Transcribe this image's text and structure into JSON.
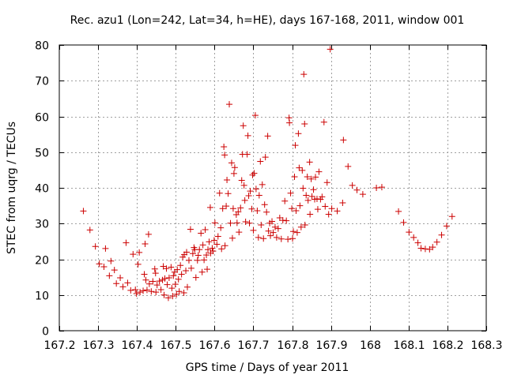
{
  "chart_data": {
    "type": "scatter",
    "title": "Rec. azu1 (Lon=242, Lat=34, h=HE), days 167-168, 2011, window 001",
    "xlabel": "GPS time / Days of year 2011",
    "ylabel": "STEC from uqrg / TECUs",
    "xlim": [
      167.2,
      168.3
    ],
    "ylim": [
      0,
      80
    ],
    "xticks": [
      167.2,
      167.3,
      167.4,
      167.5,
      167.6,
      167.7,
      167.8,
      167.9,
      168,
      168.1,
      168.2,
      168.3
    ],
    "xtick_labels": [
      "167.2",
      "167.3",
      "167.4",
      "167.5",
      "167.6",
      "167.7",
      "167.8",
      "167.9",
      "168",
      "168.1",
      "168.2",
      "168.3"
    ],
    "yticks": [
      0,
      10,
      20,
      30,
      40,
      50,
      60,
      70,
      80
    ],
    "ytick_labels": [
      "0",
      "10",
      "20",
      "30",
      "40",
      "50",
      "60",
      "70",
      "80"
    ],
    "grid": true,
    "marker": "+",
    "color": "#cc0000",
    "points": [
      [
        167.262,
        33.5
      ],
      [
        167.279,
        28.2
      ],
      [
        167.293,
        23.6
      ],
      [
        167.303,
        18.7
      ],
      [
        167.315,
        17.9
      ],
      [
        167.319,
        23.0
      ],
      [
        167.329,
        15.4
      ],
      [
        167.333,
        19.5
      ],
      [
        167.342,
        17.0
      ],
      [
        167.347,
        13.2
      ],
      [
        167.357,
        14.8
      ],
      [
        167.364,
        12.3
      ],
      [
        167.372,
        24.6
      ],
      [
        167.376,
        13.4
      ],
      [
        167.384,
        11.3
      ],
      [
        167.39,
        21.4
      ],
      [
        167.396,
        11.5
      ],
      [
        167.399,
        10.4
      ],
      [
        167.403,
        18.6
      ],
      [
        167.406,
        21.9
      ],
      [
        167.408,
        10.8
      ],
      [
        167.416,
        11.2
      ],
      [
        167.419,
        15.8
      ],
      [
        167.421,
        24.3
      ],
      [
        167.423,
        14.2
      ],
      [
        167.426,
        11.4
      ],
      [
        167.43,
        27.0
      ],
      [
        167.432,
        13.1
      ],
      [
        167.437,
        11.0
      ],
      [
        167.441,
        13.8
      ],
      [
        167.446,
        17.3
      ],
      [
        167.448,
        16.1
      ],
      [
        167.449,
        10.8
      ],
      [
        167.452,
        12.8
      ],
      [
        167.458,
        13.9
      ],
      [
        167.462,
        11.5
      ],
      [
        167.466,
        14.2
      ],
      [
        167.468,
        18.0
      ],
      [
        167.47,
        10.0
      ],
      [
        167.472,
        14.6
      ],
      [
        167.476,
        17.4
      ],
      [
        167.478,
        12.9
      ],
      [
        167.481,
        9.2
      ],
      [
        167.483,
        14.8
      ],
      [
        167.488,
        17.8
      ],
      [
        167.49,
        11.9
      ],
      [
        167.492,
        9.7
      ],
      [
        167.494,
        15.4
      ],
      [
        167.497,
        16.4
      ],
      [
        167.499,
        13.0
      ],
      [
        167.502,
        10.2
      ],
      [
        167.504,
        17.1
      ],
      [
        167.507,
        14.4
      ],
      [
        167.509,
        11.0
      ],
      [
        167.512,
        18.3
      ],
      [
        167.515,
        15.8
      ],
      [
        167.518,
        20.6
      ],
      [
        167.521,
        10.6
      ],
      [
        167.522,
        21.3
      ],
      [
        167.526,
        16.8
      ],
      [
        167.528,
        22.0
      ],
      [
        167.53,
        12.2
      ],
      [
        167.534,
        19.7
      ],
      [
        167.538,
        28.4
      ],
      [
        167.54,
        17.5
      ],
      [
        167.544,
        21.6
      ],
      [
        167.547,
        23.3
      ],
      [
        167.549,
        22.7
      ],
      [
        167.552,
        14.9
      ],
      [
        167.556,
        19.7
      ],
      [
        167.558,
        21.1
      ],
      [
        167.561,
        22.7
      ],
      [
        167.565,
        27.3
      ],
      [
        167.568,
        16.4
      ],
      [
        167.57,
        24.0
      ],
      [
        167.573,
        19.8
      ],
      [
        167.576,
        28.3
      ],
      [
        167.579,
        21.2
      ],
      [
        167.581,
        17.2
      ],
      [
        167.583,
        22.7
      ],
      [
        167.586,
        24.9
      ],
      [
        167.589,
        34.5
      ],
      [
        167.59,
        21.7
      ],
      [
        167.594,
        23.1
      ],
      [
        167.596,
        22.3
      ],
      [
        167.599,
        25.3
      ],
      [
        167.601,
        30.2
      ],
      [
        167.606,
        24.2
      ],
      [
        167.609,
        26.4
      ],
      [
        167.613,
        38.5
      ],
      [
        167.616,
        28.8
      ],
      [
        167.618,
        22.9
      ],
      [
        167.621,
        34.2
      ],
      [
        167.624,
        51.5
      ],
      [
        167.626,
        49.2
      ],
      [
        167.627,
        23.8
      ],
      [
        167.63,
        34.9
      ],
      [
        167.632,
        42.2
      ],
      [
        167.635,
        38.4
      ],
      [
        167.638,
        63.4
      ],
      [
        167.641,
        30.1
      ],
      [
        167.644,
        47.0
      ],
      [
        167.646,
        25.9
      ],
      [
        167.648,
        34.2
      ],
      [
        167.65,
        44.0
      ],
      [
        167.652,
        45.7
      ],
      [
        167.656,
        32.5
      ],
      [
        167.658,
        30.2
      ],
      [
        167.661,
        33.3
      ],
      [
        167.663,
        27.6
      ],
      [
        167.667,
        34.4
      ],
      [
        167.67,
        42.1
      ],
      [
        167.672,
        49.4
      ],
      [
        167.674,
        57.4
      ],
      [
        167.676,
        40.7
      ],
      [
        167.678,
        36.5
      ],
      [
        167.68,
        30.5
      ],
      [
        167.684,
        49.4
      ],
      [
        167.686,
        54.6
      ],
      [
        167.688,
        37.8
      ],
      [
        167.69,
        30.1
      ],
      [
        167.692,
        39.1
      ],
      [
        167.696,
        34.1
      ],
      [
        167.698,
        43.6
      ],
      [
        167.7,
        28.1
      ],
      [
        167.702,
        44.1
      ],
      [
        167.705,
        60.3
      ],
      [
        167.707,
        39.7
      ],
      [
        167.71,
        33.6
      ],
      [
        167.713,
        26.1
      ],
      [
        167.715,
        37.9
      ],
      [
        167.718,
        47.4
      ],
      [
        167.72,
        29.6
      ],
      [
        167.723,
        40.9
      ],
      [
        167.726,
        25.8
      ],
      [
        167.729,
        35.3
      ],
      [
        167.731,
        48.6
      ],
      [
        167.734,
        33.2
      ],
      [
        167.737,
        54.5
      ],
      [
        167.739,
        27.9
      ],
      [
        167.742,
        30.1
      ],
      [
        167.744,
        26.6
      ],
      [
        167.748,
        30.6
      ],
      [
        167.751,
        27.5
      ],
      [
        167.756,
        29.0
      ],
      [
        167.76,
        26.1
      ],
      [
        167.764,
        28.6
      ],
      [
        167.768,
        31.6
      ],
      [
        167.772,
        25.7
      ],
      [
        167.776,
        30.9
      ],
      [
        167.781,
        36.3
      ],
      [
        167.785,
        30.8
      ],
      [
        167.789,
        25.6
      ],
      [
        167.792,
        59.6
      ],
      [
        167.793,
        58.2
      ],
      [
        167.796,
        38.5
      ],
      [
        167.799,
        34.2
      ],
      [
        167.801,
        25.8
      ],
      [
        167.803,
        27.8
      ],
      [
        167.806,
        43.1
      ],
      [
        167.808,
        51.9
      ],
      [
        167.81,
        33.6
      ],
      [
        167.813,
        27.5
      ],
      [
        167.816,
        55.2
      ],
      [
        167.818,
        45.6
      ],
      [
        167.82,
        35.0
      ],
      [
        167.823,
        29.0
      ],
      [
        167.826,
        44.9
      ],
      [
        167.828,
        39.9
      ],
      [
        167.83,
        71.8
      ],
      [
        167.832,
        57.9
      ],
      [
        167.833,
        29.6
      ],
      [
        167.836,
        37.9
      ],
      [
        167.839,
        43.1
      ],
      [
        167.841,
        36.5
      ],
      [
        167.845,
        47.2
      ],
      [
        167.846,
        32.6
      ],
      [
        167.849,
        42.5
      ],
      [
        167.851,
        37.6
      ],
      [
        167.855,
        39.5
      ],
      [
        167.858,
        36.8
      ],
      [
        167.86,
        43.0
      ],
      [
        167.864,
        36.9
      ],
      [
        167.866,
        34.0
      ],
      [
        167.869,
        44.5
      ],
      [
        167.873,
        36.8
      ],
      [
        167.877,
        37.5
      ],
      [
        167.882,
        58.4
      ],
      [
        167.885,
        34.8
      ],
      [
        167.89,
        41.5
      ],
      [
        167.894,
        32.6
      ],
      [
        167.898,
        78.8
      ],
      [
        167.902,
        34.2
      ],
      [
        167.916,
        33.5
      ],
      [
        167.93,
        35.8
      ],
      [
        167.932,
        53.4
      ],
      [
        167.944,
        46.0
      ],
      [
        167.955,
        40.7
      ],
      [
        167.967,
        39.4
      ],
      [
        167.982,
        38.2
      ],
      [
        168.017,
        40.0
      ],
      [
        168.031,
        40.2
      ],
      [
        168.074,
        33.4
      ],
      [
        168.087,
        30.3
      ],
      [
        168.101,
        27.6
      ],
      [
        168.113,
        26.1
      ],
      [
        168.124,
        24.6
      ],
      [
        168.132,
        23.1
      ],
      [
        168.143,
        22.9
      ],
      [
        168.154,
        22.8
      ],
      [
        168.162,
        23.4
      ],
      [
        168.173,
        24.8
      ],
      [
        168.185,
        26.8
      ],
      [
        168.198,
        29.3
      ],
      [
        168.212,
        32.0
      ]
    ]
  }
}
